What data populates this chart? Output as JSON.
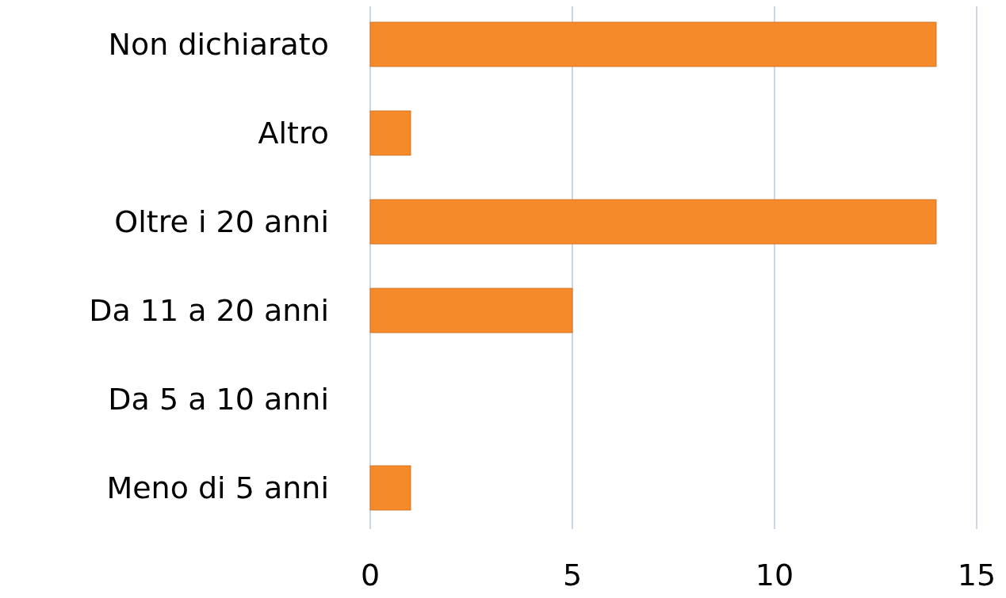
{
  "chart_data": {
    "type": "bar",
    "orientation": "horizontal",
    "categories": [
      "Non dichiarato",
      "Altro",
      "Oltre i 20 anni",
      "Da 11 a 20 anni",
      "Da 5 a 10 anni",
      "Meno di 5 anni"
    ],
    "values": [
      14,
      1,
      14,
      5,
      0,
      1
    ],
    "color": "#f58a2a",
    "xlim": [
      0,
      15
    ],
    "xticks": [
      0,
      5,
      10,
      15
    ],
    "grid": "x"
  }
}
